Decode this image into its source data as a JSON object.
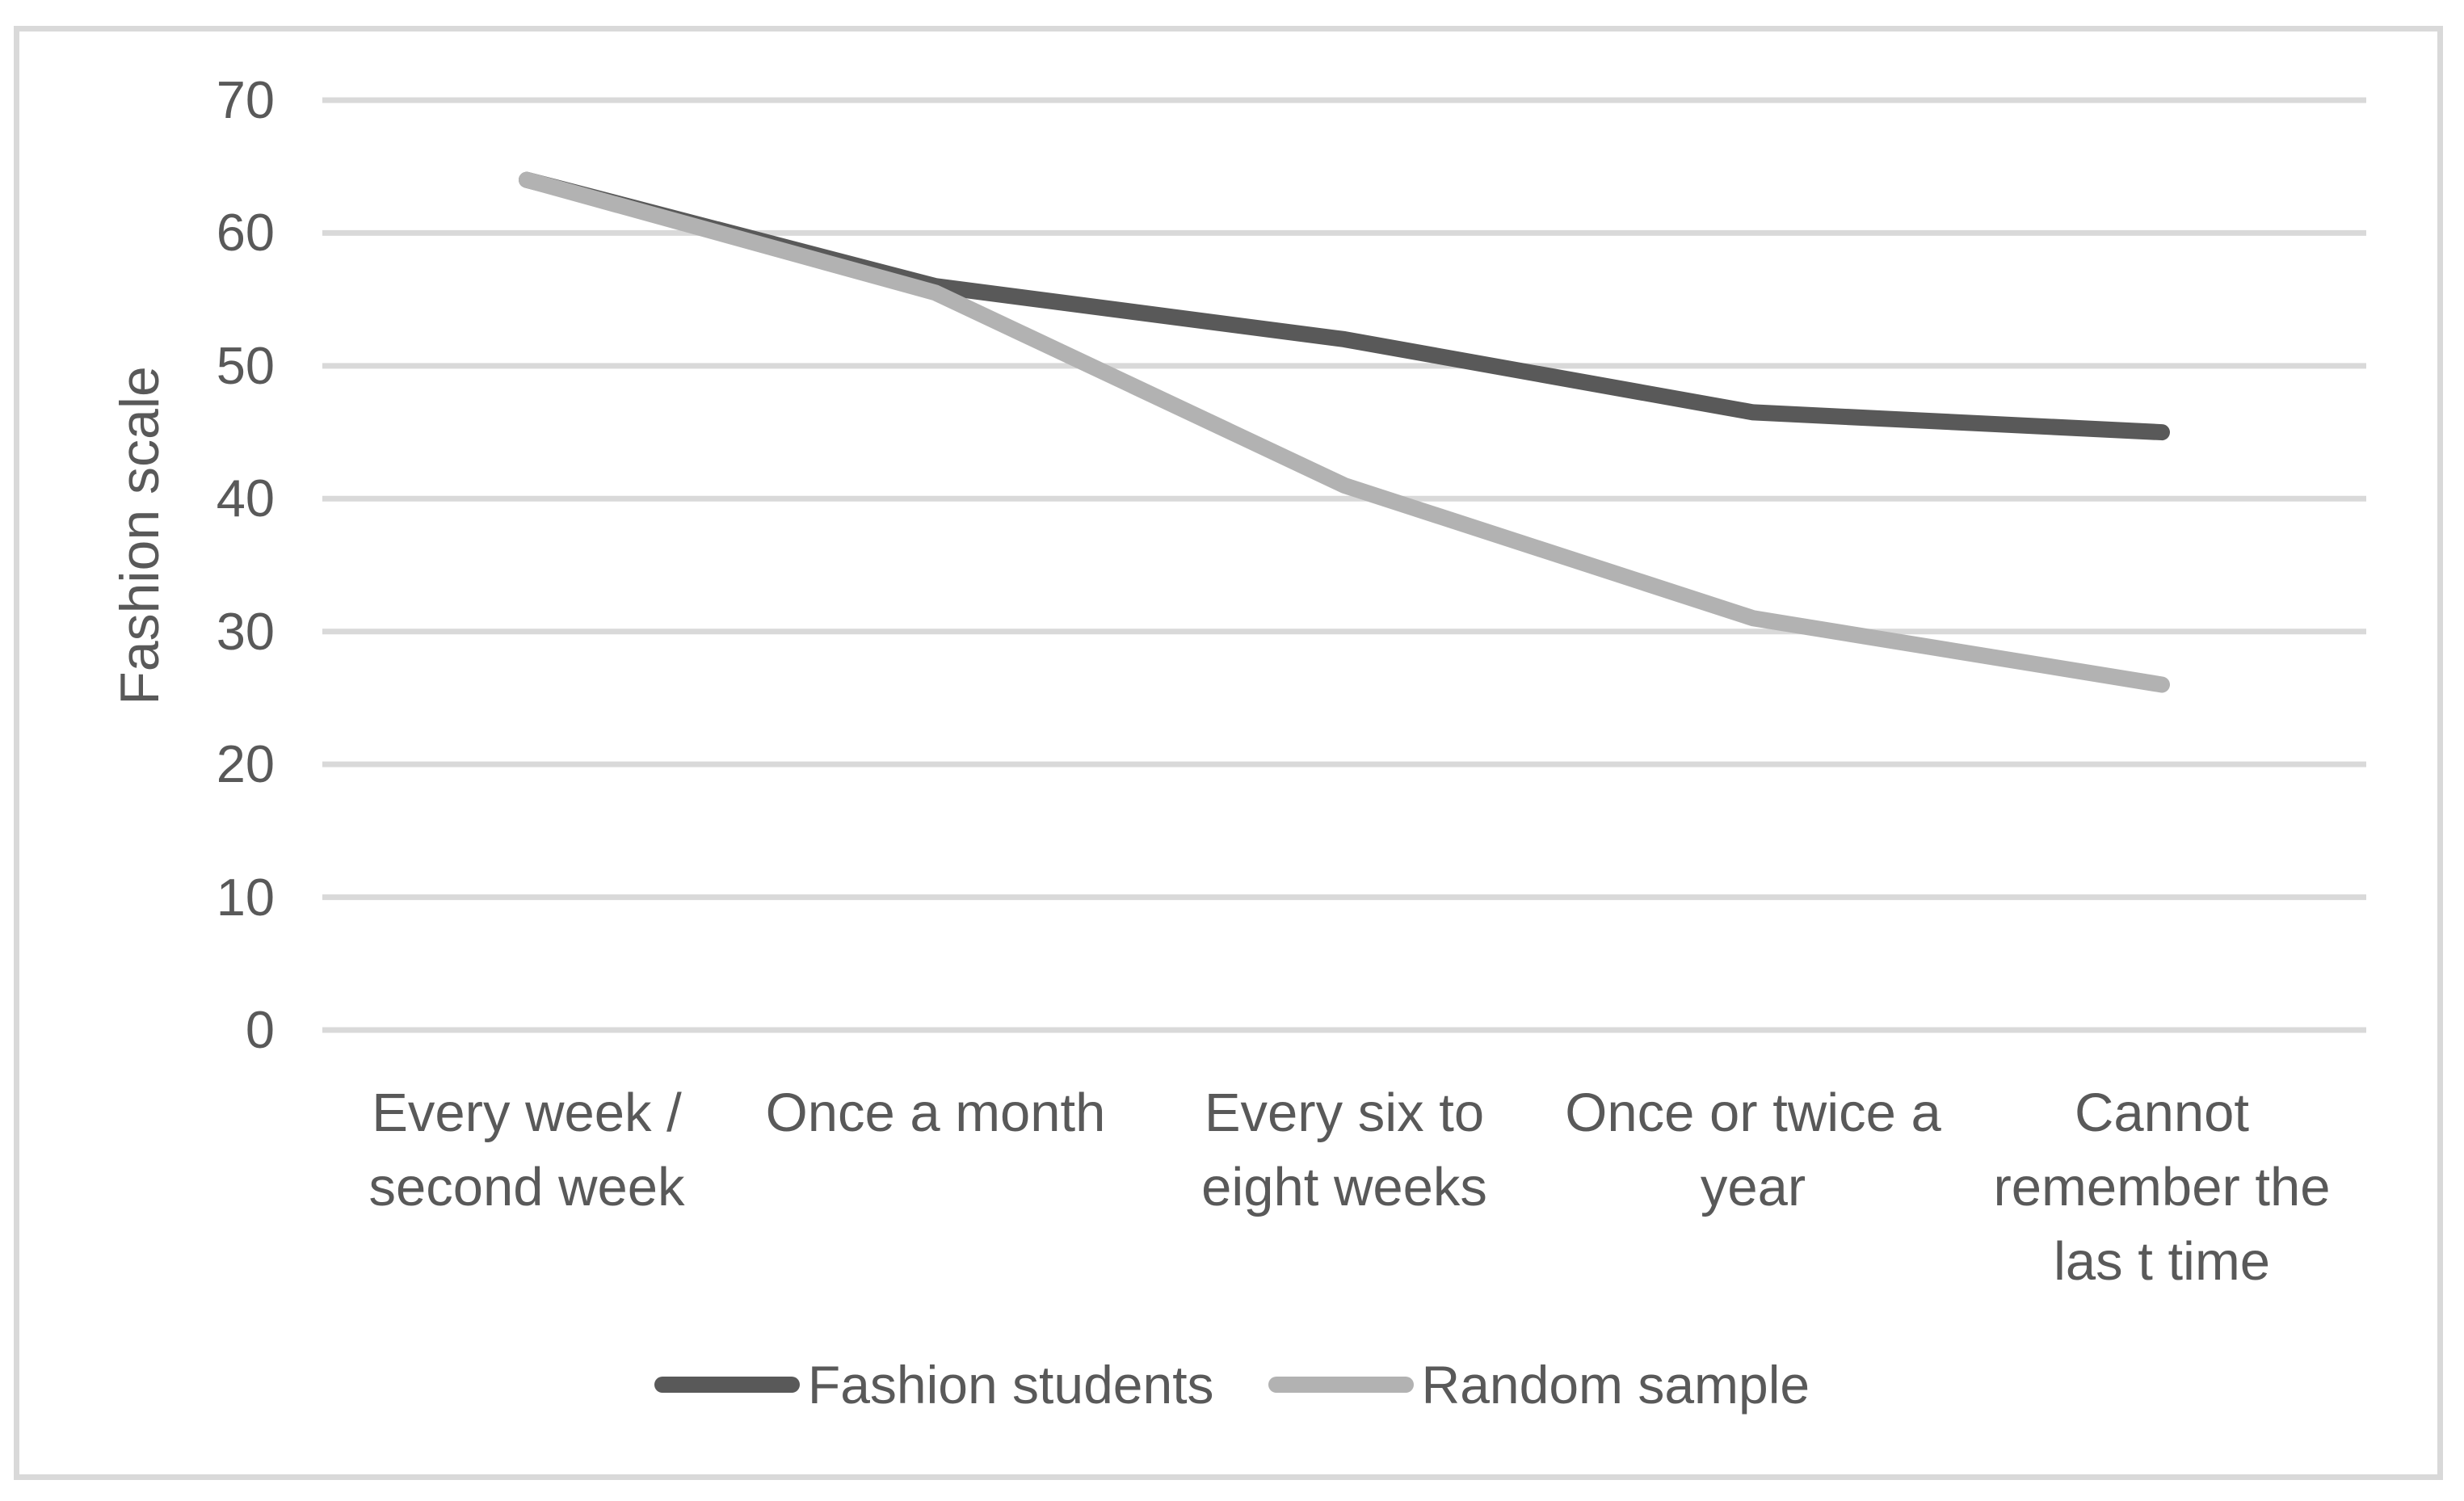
{
  "chart_data": {
    "type": "line",
    "title": "",
    "xlabel": "",
    "ylabel": "Fashion scale",
    "ylim": [
      0,
      70
    ],
    "ytick_step": 10,
    "ytick_labels": [
      70,
      60,
      50,
      40,
      30,
      20,
      10,
      0
    ],
    "grid": true,
    "legend_position": "bottom",
    "categories": [
      "Every week /\nsecond week",
      "Once a month",
      "Every six to\neight weeks",
      "Once or twice a\nyear",
      "Cannot\nremember the\nlas t time"
    ],
    "series": [
      {
        "name": "Fashion students",
        "color": "#595959",
        "values": [
          64,
          56,
          52,
          46.5,
          45
        ]
      },
      {
        "name": "Random sample",
        "color": "#b2b2b2",
        "values": [
          64,
          55.5,
          41,
          31,
          26
        ]
      }
    ],
    "colors": {
      "gridline": "#d9d9d9",
      "frame_border": "#d9d9d9",
      "text": "#595959",
      "background": "#ffffff"
    }
  }
}
